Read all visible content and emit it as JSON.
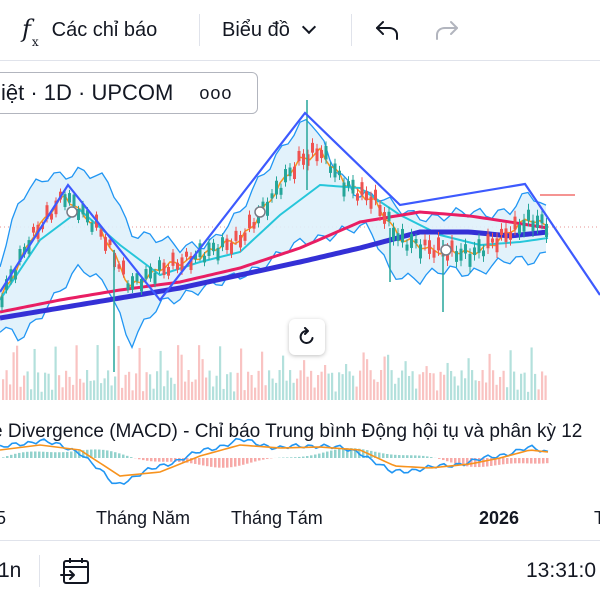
{
  "toolbar": {
    "indicators_icon": "fx-icon",
    "indicators_label": "Các chỉ báo",
    "chart_type_label": "Biểu đồ",
    "undo_icon": "undo-icon",
    "redo_icon": "redo-icon"
  },
  "legend": {
    "symbol_text": "iệt · 1D · UPCOM",
    "more_label": "ooo"
  },
  "reset_icon": "reset-icon",
  "macd": {
    "label": "e Divergence (MACD) - Chỉ báo Trung bình Động hội tụ và phân kỳ 12"
  },
  "time_axis": {
    "labels": [
      "5",
      "Tháng Năm",
      "Tháng Tám",
      "2026",
      "T"
    ]
  },
  "bottom_bar": {
    "interval_label": "1n",
    "date_range_icon": "calendar-goto-icon",
    "clock": "13:31:0"
  },
  "colors": {
    "price_line": "#e8a0a0",
    "bb_band": "#2196f3",
    "bb_fill": "#dff1fb",
    "ma_fast": "#f7931e",
    "ma_mid": "#26c6da",
    "ma_pink": "#e91e63",
    "ma_slow": "#3430d6",
    "trendline": "#3d5afe",
    "candle_up": "#26a69a",
    "candle_down": "#ef5350",
    "macd_line": "#2196f3",
    "signal_line": "#f7931e"
  },
  "chart_data": {
    "type": "line",
    "title": "",
    "xlabel": "",
    "ylabel": "",
    "x_ticks": [
      "5",
      "Tháng Năm",
      "Tháng Tám",
      "2026",
      "T"
    ],
    "grid": false
  }
}
